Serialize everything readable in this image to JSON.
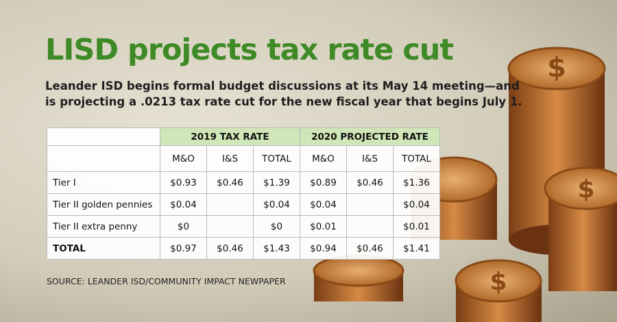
{
  "header": {
    "title": "LISD projects tax rate cut",
    "subtitle_lines": [
      "Leander ISD begins formal budget discussions at its May 14 meeting—and",
      "is projecting a .0213 tax rate cut for the new fiscal year that begins July 1."
    ]
  },
  "table": {
    "groups": [
      "2019 TAX RATE",
      "2020 PROJECTED RATE"
    ],
    "subheaders": [
      "M&O",
      "I&S",
      "TOTAL",
      "M&O",
      "I&S",
      "TOTAL"
    ],
    "rows": [
      {
        "label": "Tier I",
        "values": [
          "$0.93",
          "$0.46",
          "$1.39",
          "$0.89",
          "$0.46",
          "$1.36"
        ]
      },
      {
        "label": "Tier II golden pennies",
        "values": [
          "$0.04",
          null,
          "$0.04",
          "$0.04",
          null,
          "$0.04"
        ]
      },
      {
        "label": "Tier II extra penny",
        "values": [
          "$0",
          null,
          "$0",
          "$0.01",
          null,
          "$0.01"
        ]
      },
      {
        "label": "TOTAL",
        "values": [
          "$0.97",
          "$0.46",
          "$1.43",
          "$0.94",
          "$0.46",
          "$1.41"
        ]
      }
    ]
  },
  "source": "SOURCE: LEANDER ISD/COMMUNITY IMPACT NEWPAPER"
}
